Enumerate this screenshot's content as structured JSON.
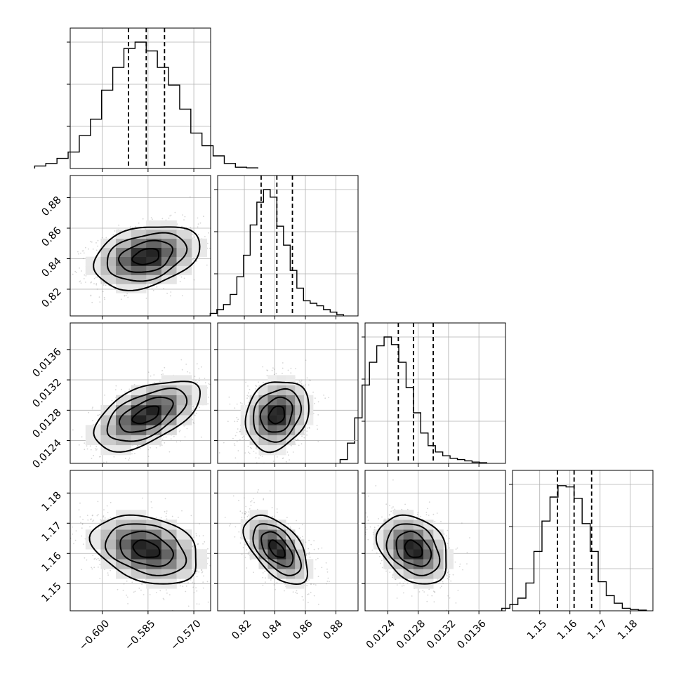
{
  "chart_data": {
    "type": "corner",
    "parameters": [
      {
        "range": [
          -0.6105,
          -0.5645
        ],
        "ticks": [
          -0.6,
          -0.585,
          -0.57
        ],
        "tick_labels": [
          "−0.600",
          "−0.585",
          "−0.570"
        ],
        "median": -0.5856,
        "q16": -0.5914,
        "q84": -0.5796,
        "sigma": 0.0087,
        "hist": [
          0.02,
          0.04,
          0.08,
          0.13,
          0.26,
          0.39,
          0.62,
          0.8,
          0.95,
          1.0,
          0.93,
          0.8,
          0.66,
          0.47,
          0.28,
          0.18,
          0.1,
          0.04,
          0.01,
          0.005
        ]
      },
      {
        "range": [
          0.8025,
          0.8945
        ],
        "ticks": [
          0.82,
          0.84,
          0.86,
          0.88
        ],
        "tick_labels": [
          "0.82",
          "0.84",
          "0.86",
          "0.88"
        ],
        "median": 0.8413,
        "q16": 0.831,
        "q84": 0.8515,
        "sigma": 0.0104,
        "hist": [
          0.02,
          0.05,
          0.09,
          0.17,
          0.31,
          0.48,
          0.72,
          0.9,
          1.0,
          0.94,
          0.71,
          0.56,
          0.36,
          0.22,
          0.12,
          0.1,
          0.08,
          0.05,
          0.03,
          0.01
        ]
      },
      {
        "range": [
          0.0121,
          0.01395
        ],
        "ticks": [
          0.0124,
          0.0128,
          0.0132,
          0.0136
        ],
        "tick_labels": [
          "0.0124",
          "0.0128",
          "0.0132",
          "0.0136"
        ],
        "median": 0.012737,
        "q16": 0.012538,
        "q84": 0.012998,
        "sigma": 0.00023,
        "hist": [
          0.03,
          0.16,
          0.36,
          0.62,
          0.8,
          0.93,
          1.0,
          0.94,
          0.8,
          0.6,
          0.4,
          0.24,
          0.14,
          0.09,
          0.06,
          0.04,
          0.03,
          0.02,
          0.01,
          0.005
        ]
      },
      {
        "range": [
          1.141,
          1.1875
        ],
        "ticks": [
          1.15,
          1.16,
          1.17,
          1.18
        ],
        "tick_labels": [
          "1.15",
          "1.16",
          "1.17",
          "1.18"
        ],
        "median": 1.1614,
        "q16": 1.1559,
        "q84": 1.1672,
        "sigma": 0.0057,
        "hist": [
          0.02,
          0.05,
          0.1,
          0.22,
          0.47,
          0.71,
          0.9,
          0.99,
          0.98,
          0.89,
          0.69,
          0.47,
          0.23,
          0.12,
          0.06,
          0.02,
          0.01,
          0.005
        ]
      }
    ],
    "correlations": [
      {
        "i": 1,
        "j": 0,
        "rho": 0.3
      },
      {
        "i": 2,
        "j": 0,
        "rho": 0.55
      },
      {
        "i": 2,
        "j": 1,
        "rho": 0.2
      },
      {
        "i": 3,
        "j": 0,
        "rho": -0.3
      },
      {
        "i": 3,
        "j": 1,
        "rho": -0.55
      },
      {
        "i": 3,
        "j": 2,
        "rho": -0.3
      }
    ],
    "contour_levels_sigma": [
      0.5,
      1.0,
      1.5,
      2.0
    ],
    "quantiles": [
      0.16,
      0.5,
      0.84
    ],
    "grid": true
  }
}
